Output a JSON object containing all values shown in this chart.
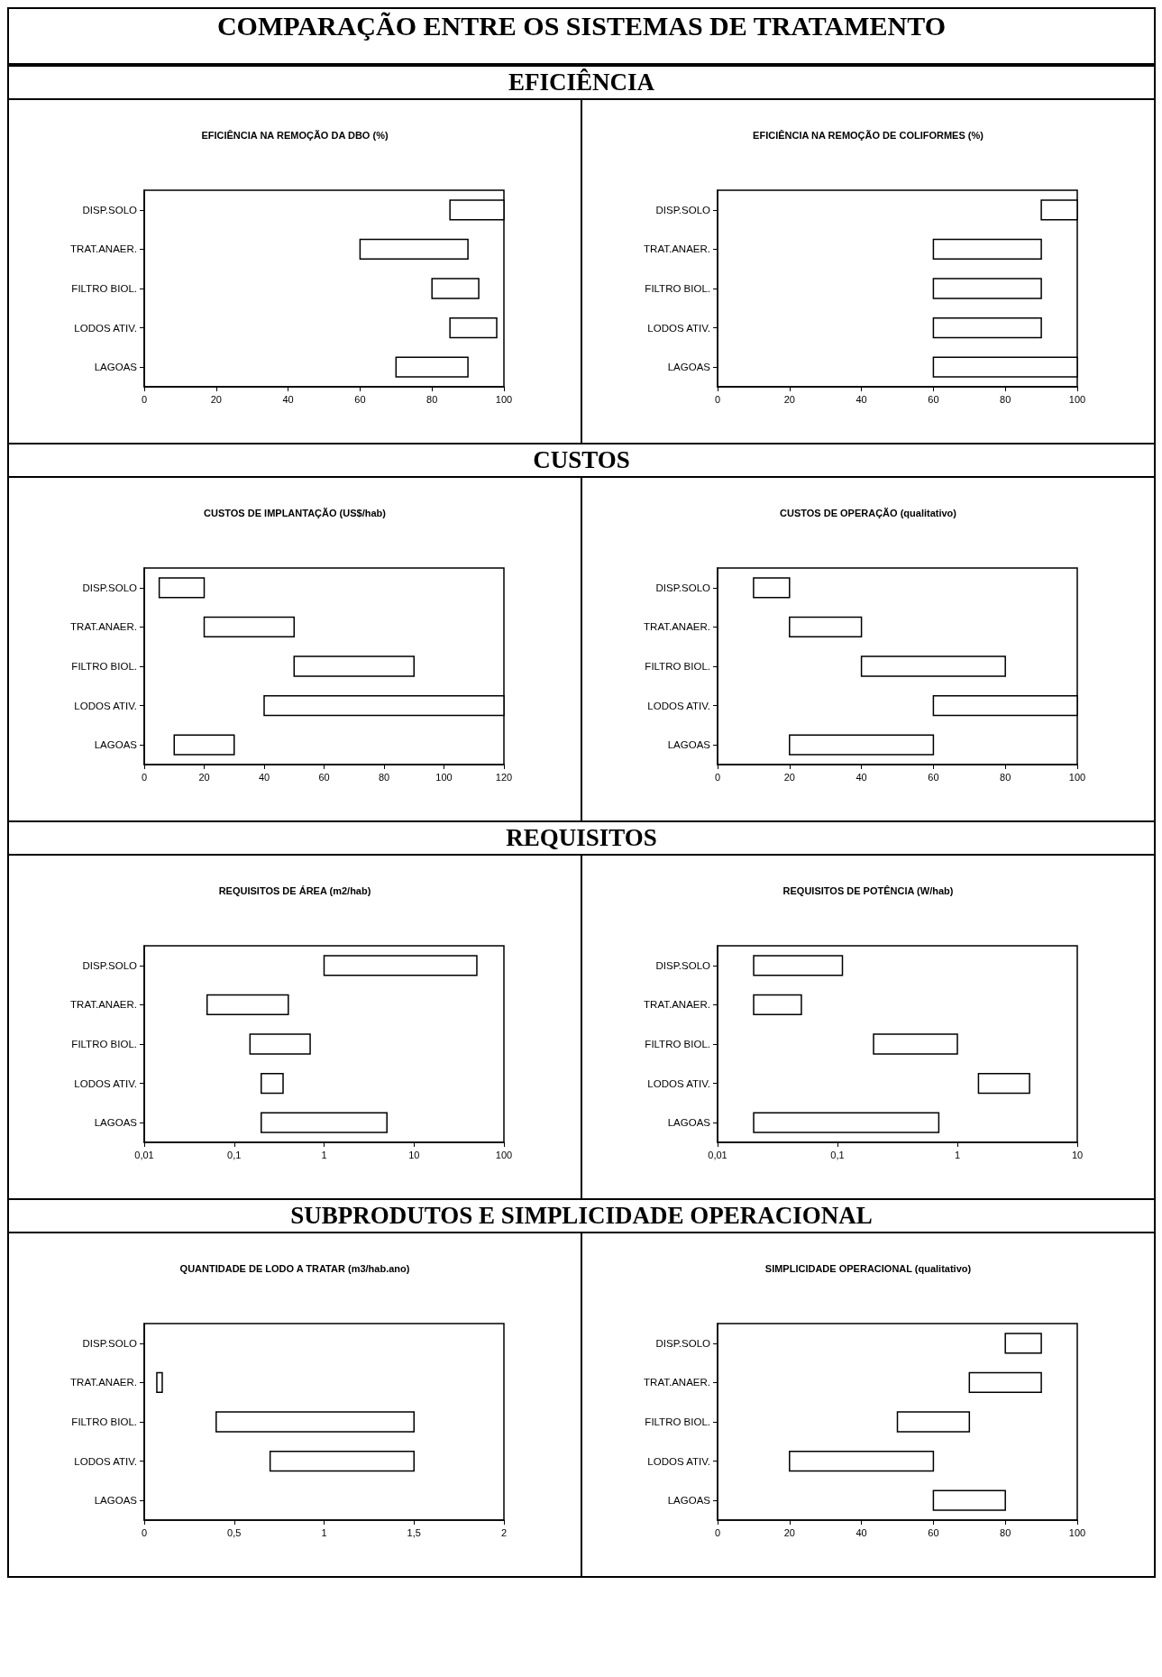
{
  "chart_data": [
    {
      "type": "bar",
      "orientation": "horizontal",
      "title": "EFICIÊNCIA NA REMOÇÃO DA DBO (%)",
      "annotations": [
        "COMPARAÇÃO ENTRE OS SISTEMAS DE TRATAMENTO",
        "EFICIÊNCIA"
      ],
      "categories": [
        "DISP.SOLO",
        "TRAT.ANAER.",
        "FILTRO BIOL.",
        "LODOS ATIV.",
        "LAGOAS"
      ],
      "base": [
        85,
        60,
        80,
        85,
        70
      ],
      "values": [
        15,
        30,
        13,
        13,
        20
      ],
      "color": "#ffffff",
      "xlim": [
        0,
        100
      ],
      "xticks": [
        0,
        20,
        40,
        60,
        80,
        100
      ],
      "grid": false
    },
    {
      "type": "bar",
      "orientation": "horizontal",
      "title": "EFICIÊNCIA NA REMOÇÃO DE COLIFORMES (%)",
      "categories": [
        "DISP.SOLO",
        "TRAT.ANAER.",
        "FILTRO BIOL.",
        "LODOS ATIV.",
        "LAGOAS"
      ],
      "base": [
        90,
        60,
        60,
        60,
        60
      ],
      "values": [
        10,
        30,
        30,
        30,
        40
      ],
      "color": "#ffffff",
      "xlim": [
        0,
        100
      ],
      "xticks": [
        0,
        20,
        40,
        60,
        80,
        100
      ],
      "grid": false
    },
    {
      "type": "bar",
      "orientation": "horizontal",
      "title": "CUSTOS DE IMPLANTAÇÃO (US$/hab)",
      "annotations": [
        "CUSTOS"
      ],
      "categories": [
        "DISP.SOLO",
        "TRAT.ANAER.",
        "FILTRO BIOL.",
        "LODOS ATIV.",
        "LAGOAS"
      ],
      "base": [
        5,
        20,
        50,
        40,
        10
      ],
      "values": [
        15,
        30,
        40,
        80,
        20
      ],
      "color": "#ffffff",
      "xlim": [
        0,
        120
      ],
      "xticks": [
        0,
        20,
        40,
        60,
        80,
        100,
        120
      ],
      "grid": false
    },
    {
      "type": "bar",
      "orientation": "horizontal",
      "title": "CUSTOS DE OPERAÇÃO (qualitativo)",
      "categories": [
        "DISP.SOLO",
        "TRAT.ANAER.",
        "FILTRO BIOL.",
        "LODOS ATIV.",
        "LAGOAS"
      ],
      "base": [
        10,
        20,
        40,
        60,
        20
      ],
      "values": [
        10,
        20,
        40,
        40,
        40
      ],
      "color": "#ffffff",
      "xlim": [
        0,
        100
      ],
      "xticks": [
        0,
        20,
        40,
        60,
        80,
        100
      ],
      "grid": false
    },
    {
      "type": "bar",
      "orientation": "horizontal",
      "title": "REQUISITOS DE ÁREA (m2/hab)",
      "annotations": [
        "REQUISITOS"
      ],
      "categories": [
        "DISP.SOLO",
        "TRAT.ANAER.",
        "FILTRO BIOL.",
        "LODOS ATIV.",
        "LAGOAS"
      ],
      "base": [
        1,
        0.05,
        0.15,
        0.2,
        0.2
      ],
      "values": [
        49,
        0.35,
        0.55,
        0.15,
        4.8
      ],
      "color": "#ffffff",
      "log": "x",
      "xlim": [
        0.01,
        100
      ],
      "xticks": [
        {
          "value": 0.01,
          "label": "0,01"
        },
        {
          "value": 0.1,
          "label": "0,1"
        },
        1,
        10,
        100
      ],
      "grid": false
    },
    {
      "type": "bar",
      "orientation": "horizontal",
      "title": "REQUISITOS DE POTÊNCIA (W/hab)",
      "categories": [
        "DISP.SOLO",
        "TRAT.ANAER.",
        "FILTRO BIOL.",
        "LODOS ATIV.",
        "LAGOAS"
      ],
      "base": [
        0.02,
        0.02,
        0.2,
        1.5,
        0.02
      ],
      "values": [
        0.09,
        0.03,
        0.8,
        2.5,
        0.68
      ],
      "color": "#ffffff",
      "log": "x",
      "xlim": [
        0.01,
        10
      ],
      "xticks": [
        {
          "value": 0.01,
          "label": "0,01"
        },
        {
          "value": 0.1,
          "label": "0,1"
        },
        1,
        10
      ],
      "grid": false
    },
    {
      "type": "bar",
      "orientation": "horizontal",
      "title": "QUANTIDADE DE LODO A TRATAR (m3/hab.ano)",
      "annotations": [
        "SUBPRODUTOS E SIMPLICIDADE OPERACIONAL"
      ],
      "categories": [
        "DISP.SOLO",
        "TRAT.ANAER.",
        "FILTRO BIOL.",
        "LODOS ATIV.",
        "LAGOAS"
      ],
      "base": [
        null,
        0.07,
        0.4,
        0.7,
        null
      ],
      "values": [
        null,
        0.03,
        1.1,
        0.8,
        null
      ],
      "color": "#ffffff",
      "xlim": [
        0,
        2
      ],
      "xticks": [
        0,
        {
          "value": 0.5,
          "label": "0,5"
        },
        1,
        {
          "value": 1.5,
          "label": "1,5"
        },
        2
      ],
      "grid": false
    },
    {
      "type": "bar",
      "orientation": "horizontal",
      "title": "SIMPLICIDADE OPERACIONAL (qualitativo)",
      "categories": [
        "DISP.SOLO",
        "TRAT.ANAER.",
        "FILTRO BIOL.",
        "LODOS ATIV.",
        "LAGOAS"
      ],
      "base": [
        80,
        70,
        50,
        20,
        60
      ],
      "values": [
        10,
        20,
        20,
        40,
        20
      ],
      "color": "#ffffff",
      "xlim": [
        0,
        100
      ],
      "xticks": [
        0,
        20,
        40,
        60,
        80,
        100
      ],
      "grid": false
    }
  ]
}
